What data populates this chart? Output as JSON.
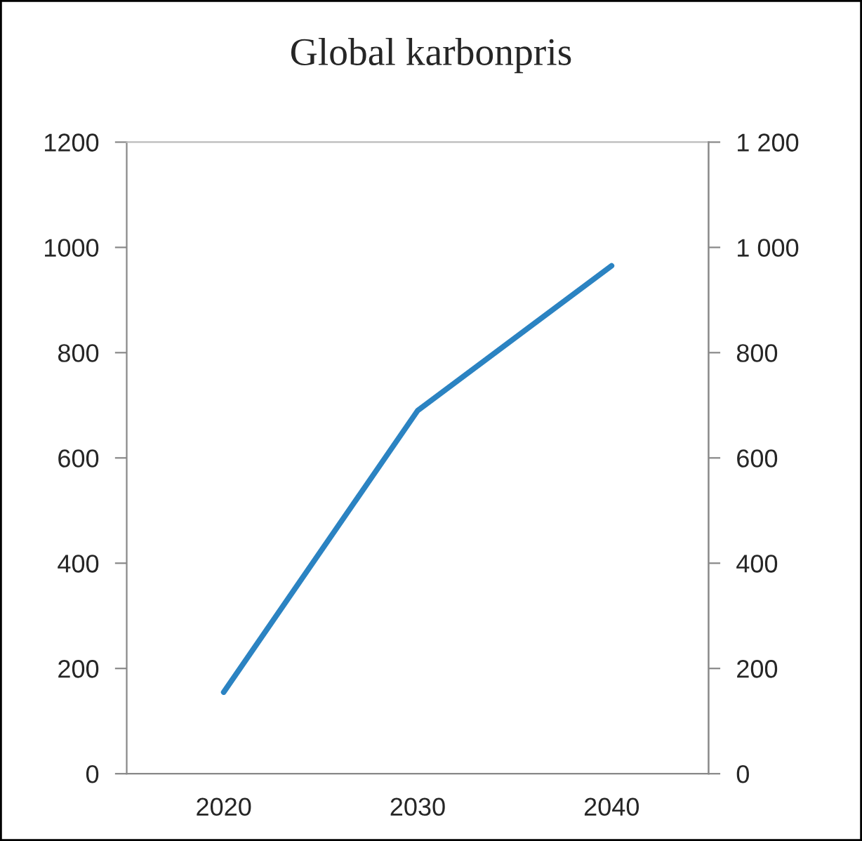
{
  "chart_data": {
    "type": "line",
    "title": "Global karbonpris",
    "categories": [
      "2020",
      "2030",
      "2040"
    ],
    "series": [
      {
        "color": "#2b83c2",
        "values": [
          155,
          690,
          965
        ]
      }
    ],
    "ylim": [
      0,
      1200
    ],
    "yticks": [
      0,
      200,
      400,
      600,
      800,
      1000,
      1200
    ],
    "y2lim": [
      0,
      1200
    ],
    "y2ticks": [
      0,
      200,
      400,
      600,
      800,
      {
        "value": 1000,
        "label": "1 000"
      },
      {
        "value": 1200,
        "label": "1 200"
      }
    ],
    "grid": false,
    "legend": false,
    "marker": "none",
    "line_style": "solid"
  }
}
